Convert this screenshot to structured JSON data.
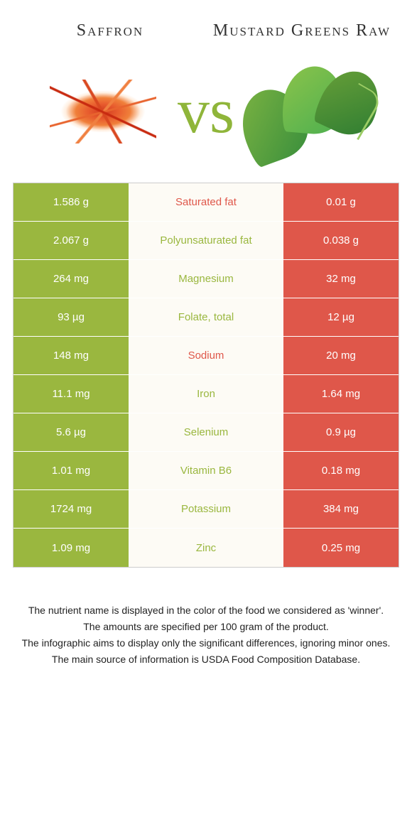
{
  "colors": {
    "saffron": "#9ab73f",
    "greens": "#df574a",
    "bg": "#ffffff",
    "midbg": "#fdfbf5",
    "vs": "#8fb53a"
  },
  "titles": {
    "left": "Saffron",
    "right": "Mustard Greens Raw"
  },
  "vs": "vs",
  "rows": [
    {
      "left": "1.586 g",
      "label": "Saturated fat",
      "right": "0.01 g",
      "winner": "greens"
    },
    {
      "left": "2.067 g",
      "label": "Polyunsaturated fat",
      "right": "0.038 g",
      "winner": "saffron"
    },
    {
      "left": "264 mg",
      "label": "Magnesium",
      "right": "32 mg",
      "winner": "saffron"
    },
    {
      "left": "93 µg",
      "label": "Folate, total",
      "right": "12 µg",
      "winner": "saffron"
    },
    {
      "left": "148 mg",
      "label": "Sodium",
      "right": "20 mg",
      "winner": "greens"
    },
    {
      "left": "11.1 mg",
      "label": "Iron",
      "right": "1.64 mg",
      "winner": "saffron"
    },
    {
      "left": "5.6 µg",
      "label": "Selenium",
      "right": "0.9 µg",
      "winner": "saffron"
    },
    {
      "left": "1.01 mg",
      "label": "Vitamin B6",
      "right": "0.18 mg",
      "winner": "saffron"
    },
    {
      "left": "1724 mg",
      "label": "Potassium",
      "right": "384 mg",
      "winner": "saffron"
    },
    {
      "left": "1.09 mg",
      "label": "Zinc",
      "right": "0.25 mg",
      "winner": "saffron"
    }
  ],
  "footer": [
    "The nutrient name is displayed in the color of the food we considered as 'winner'.",
    "The amounts are specified per 100 gram of the product.",
    "The infographic aims to display only the significant differences, ignoring minor ones.",
    "The main source of information is USDA Food Composition Database."
  ]
}
